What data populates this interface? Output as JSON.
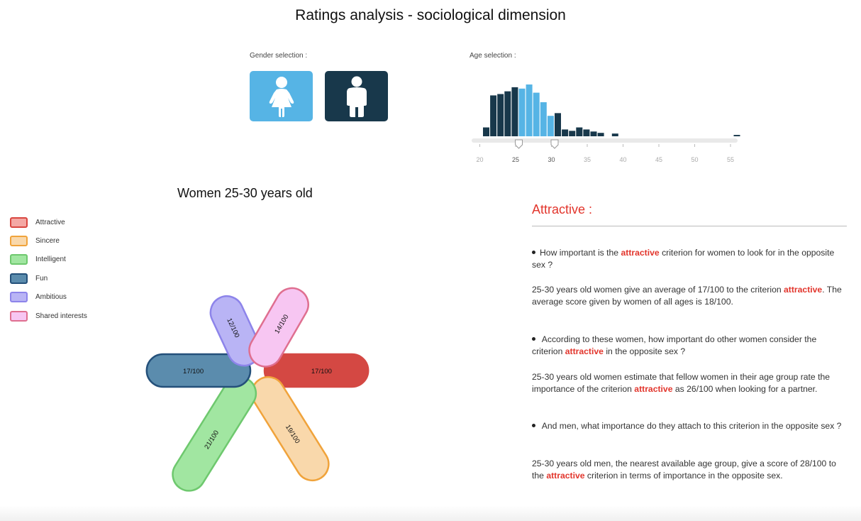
{
  "header": {
    "title": "Ratings analysis - sociological dimension"
  },
  "gender_selection": {
    "label": "Gender selection :",
    "options": [
      {
        "id": "female",
        "icon": "female-icon",
        "color": "#56b4e5"
      },
      {
        "id": "male",
        "icon": "male-icon",
        "color": "#18384b"
      }
    ]
  },
  "age_selection": {
    "label": "Age selection :",
    "ticks": [
      "20",
      "25",
      "30",
      "35",
      "40",
      "45",
      "50",
      "55"
    ],
    "range": [
      25,
      30
    ],
    "selected_color": "#56b4e5",
    "unselected_color": "#18384b",
    "bars": [
      {
        "age": 20,
        "value": 13
      },
      {
        "age": 21,
        "value": 60
      },
      {
        "age": 22,
        "value": 62
      },
      {
        "age": 23,
        "value": 66
      },
      {
        "age": 24,
        "value": 72
      },
      {
        "age": 25,
        "value": 70
      },
      {
        "age": 26,
        "value": 76
      },
      {
        "age": 27,
        "value": 64
      },
      {
        "age": 28,
        "value": 50
      },
      {
        "age": 29,
        "value": 30
      },
      {
        "age": 30,
        "value": 34
      },
      {
        "age": 31,
        "value": 10
      },
      {
        "age": 32,
        "value": 8
      },
      {
        "age": 33,
        "value": 13
      },
      {
        "age": 34,
        "value": 10
      },
      {
        "age": 35,
        "value": 7
      },
      {
        "age": 36,
        "value": 5
      },
      {
        "age": 38,
        "value": 4
      },
      {
        "age": 55,
        "value": 2
      }
    ]
  },
  "chart_title": "Women 25-30 years old",
  "legend": [
    {
      "label": "Attractive",
      "fill": "#f4a8a4",
      "stroke": "#d94640"
    },
    {
      "label": "Sincere",
      "fill": "#f9d8ab",
      "stroke": "#f0a33b"
    },
    {
      "label": "Intelligent",
      "fill": "#a1e6a1",
      "stroke": "#6ec86e"
    },
    {
      "label": "Fun",
      "fill": "#5b8cad",
      "stroke": "#24507a"
    },
    {
      "label": "Ambitious",
      "fill": "#b9b4f5",
      "stroke": "#8d84ea"
    },
    {
      "label": "Shared interests",
      "fill": "#f7c6f2",
      "stroke": "#df6f90"
    }
  ],
  "chart_data": {
    "type": "petal",
    "series": [
      {
        "name": "Attractive",
        "value": 17,
        "label": "17/100",
        "fill": "#d44843",
        "stroke": "#d44843"
      },
      {
        "name": "Sincere",
        "value": 19,
        "label": "19/100",
        "fill": "#f9d8ab",
        "stroke": "#f0a33b"
      },
      {
        "name": "Intelligent",
        "value": 21,
        "label": "21/100",
        "fill": "#a1e6a1",
        "stroke": "#6ec86e"
      },
      {
        "name": "Fun",
        "value": 17,
        "label": "17/100",
        "fill": "#5b8cad",
        "stroke": "#24507a"
      },
      {
        "name": "Ambitious",
        "value": 12,
        "label": "12/100",
        "fill": "#b9b4f5",
        "stroke": "#8d84ea"
      },
      {
        "name": "Shared interests",
        "value": 14,
        "label": "14/100",
        "fill": "#f7c6f2",
        "stroke": "#df6f90"
      }
    ]
  },
  "panel": {
    "title": "Attractive :",
    "q1": [
      "How important is the ",
      "attractive",
      " criterion for women to look for in the opposite sex ?"
    ],
    "a1": [
      "25-30 years old women give an average of 17/100 to the criterion ",
      "attractive",
      ". The average score given by women of all ages is 18/100."
    ],
    "q2": [
      "According to these women, how important do other women consider the criterion ",
      "attractive",
      " in the opposite sex ?"
    ],
    "a2": [
      "25-30 years old women estimate that fellow women in their age group rate the importance of the criterion ",
      "attractive",
      " as 26/100 when looking for a partner."
    ],
    "q3": [
      "And men, what importance do they attach to this criterion in the opposite sex ?"
    ],
    "a3": [
      "25-30 years old men, the nearest available age group, give a score of 28/100 to the ",
      "attractive",
      " criterion in terms of importance in the opposite sex."
    ]
  }
}
